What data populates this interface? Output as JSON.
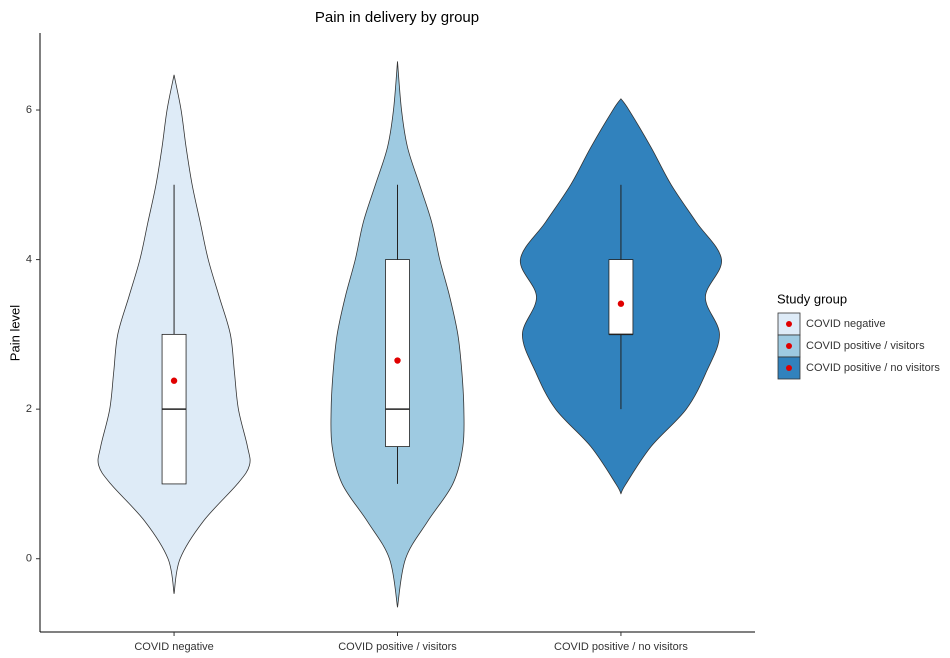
{
  "chart_data": {
    "type": "violin",
    "title": "Pain in delivery by group",
    "y_label": "Pain level",
    "legend_title": "Study group",
    "categories": [
      "COVID negative",
      "COVID positive / visitors",
      "COVID positive / no visitors"
    ],
    "ylim": [
      -0.98,
      7.03
    ],
    "yticks": [
      0,
      2,
      4,
      6
    ],
    "legend": "right",
    "mean_color": "#e00000",
    "series": [
      {
        "name": "COVID negative",
        "color": "#deebf7",
        "min": 1,
        "q1": 1,
        "median": 2,
        "q3": 3,
        "max": 5,
        "mean": 2.38,
        "violin": {
          "y": [
            -0.47,
            0,
            0.5,
            1.0,
            1.25,
            1.5,
            2.0,
            2.5,
            3.0,
            3.5,
            4.0,
            4.5,
            5.0,
            5.5,
            6.0,
            6.47
          ],
          "width": [
            0,
            0.06,
            0.29,
            0.63,
            0.75,
            0.73,
            0.64,
            0.6,
            0.56,
            0.45,
            0.34,
            0.26,
            0.18,
            0.12,
            0.07,
            0
          ]
        }
      },
      {
        "name": "COVID positive / visitors",
        "color": "#9ecae1",
        "min": 1,
        "q1": 1.5,
        "median": 2,
        "q3": 4,
        "max": 5,
        "mean": 2.65,
        "violin": {
          "y": [
            -0.65,
            0,
            0.5,
            1.0,
            1.5,
            2.0,
            2.5,
            3.0,
            3.5,
            4.0,
            4.5,
            5.0,
            5.5,
            6.0,
            6.65
          ],
          "width": [
            0,
            0.08,
            0.3,
            0.55,
            0.65,
            0.66,
            0.64,
            0.6,
            0.52,
            0.42,
            0.34,
            0.22,
            0.1,
            0.04,
            0
          ]
        }
      },
      {
        "name": "COVID positive / no visitors",
        "color": "#3182bd",
        "min": 2,
        "q1": 3,
        "median": 3,
        "q3": 4,
        "max": 5,
        "mean": 3.41,
        "violin": {
          "y": [
            0.87,
            1.0,
            1.5,
            2.0,
            2.5,
            3.0,
            3.5,
            4.0,
            4.5,
            5.0,
            5.5,
            6.0,
            6.15
          ],
          "width": [
            0,
            0.05,
            0.3,
            0.65,
            0.85,
            0.98,
            0.84,
            1.0,
            0.75,
            0.5,
            0.3,
            0.08,
            0
          ]
        }
      }
    ]
  }
}
